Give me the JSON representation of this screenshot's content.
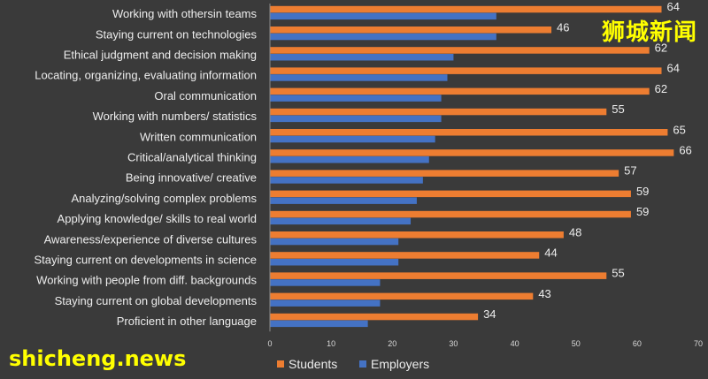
{
  "chart_data": {
    "type": "bar",
    "orientation": "horizontal",
    "categories": [
      "Working with othersin teams",
      "Staying current on technologies",
      "Ethical judgment and decision making",
      "Locating, organizing, evaluating information",
      "Oral communication",
      "Working with numbers/ statistics",
      "Written communication",
      "Critical/analytical thinking",
      "Being innovative/ creative",
      "Analyzing/solving complex problems",
      "Applying knowledge/ skills to real world",
      "Awareness/experience of diverse cultures",
      "Staying current on developments in science",
      "Working with people from diff. backgrounds",
      "Staying current on global developments",
      "Proficient in other language"
    ],
    "series": [
      {
        "name": "Students",
        "color": "#ed7d31",
        "values": [
          64,
          46,
          62,
          64,
          62,
          55,
          65,
          66,
          57,
          59,
          59,
          48,
          44,
          55,
          43,
          34
        ]
      },
      {
        "name": "Employers",
        "color": "#4472c4",
        "values": [
          37,
          37,
          30,
          29,
          28,
          28,
          27,
          26,
          25,
          24,
          23,
          21,
          21,
          18,
          18,
          16
        ]
      }
    ],
    "data_labels_series": "Students",
    "xlim": [
      0,
      70
    ],
    "xticks": [
      0,
      10,
      20,
      30,
      40,
      50,
      60,
      70
    ],
    "grid": false,
    "legend_position": "bottom"
  },
  "watermarks": {
    "chinese": "狮城新闻",
    "english": "shicheng.news"
  }
}
